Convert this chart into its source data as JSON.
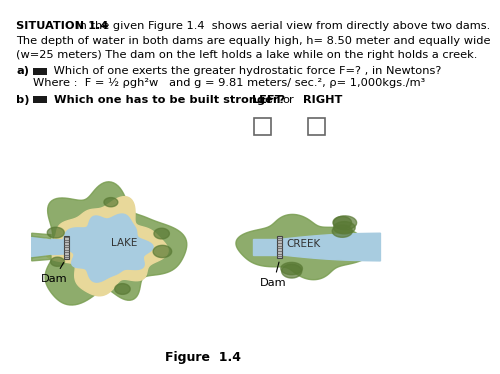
{
  "title_bold": "SITUATION 1.4",
  "title_rest": "  In the given Figure 1.4  shows aerial view from directly above two dams.",
  "line2": "The depth of water in both dams are equally high, h= 8.50 meter and equally wide",
  "line3": "(w=25 meters) The dam on the left holds a lake while on the right holds a creek.",
  "part_a_label": "a)",
  "part_a_text": " Which of one exerts the greater hydrostatic force F=? , in Newtons?",
  "part_a_sub": "Where :  F = ½ ρgh²w   and g = 9.81 meters/ sec.², ρ= 1,000kgs./m³",
  "part_b_label": "b)",
  "part_b_text": " Which one has to be built stronger?",
  "left_label": "LEFT",
  "or_label": "or",
  "right_label": "RIGHT",
  "fig_caption": "Figure  1.4",
  "lake_label": "LAKE",
  "creek_label": "CREEK",
  "dam_label_left": "Dam",
  "dam_label_right": "Dam",
  "bg_color": "#ffffff",
  "text_color": "#000000",
  "lake_water_color": "#a8cce0",
  "lake_shore_color": "#e8d89a",
  "green_color": "#7a9e52",
  "green_dark": "#5a7a35",
  "creek_water_color": "#a8cce0",
  "dam_color": "#aaaaaa",
  "dam_hatch_color": "#666666",
  "checkbox_color": "#cccccc"
}
